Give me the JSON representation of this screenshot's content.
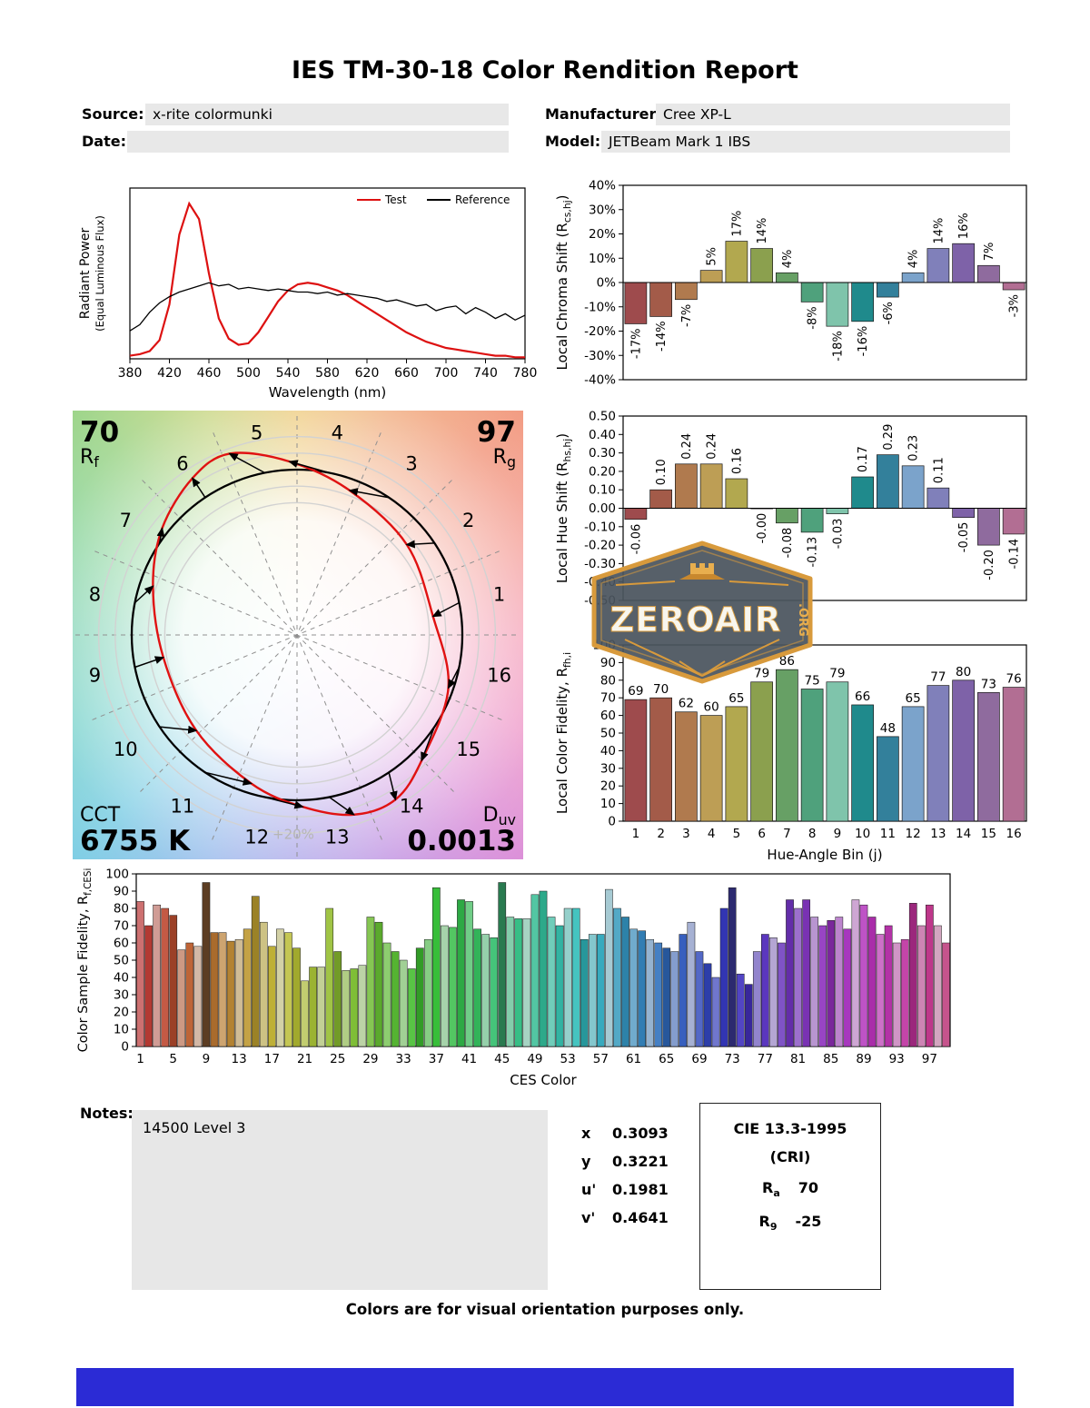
{
  "page": {
    "title": "IES TM-30-18 Color Rendition Report",
    "footer": "Colors are for visual orientation purposes only.",
    "accent_bar_color": "#2b2bd5"
  },
  "header": {
    "source": {
      "label": "Source:",
      "value": "x-rite colormunki"
    },
    "date": {
      "label": "Date:",
      "value": ""
    },
    "manufacturer": {
      "label": "Manufacturer:",
      "value": "Cree XP-L"
    },
    "model": {
      "label": "Model:",
      "value": "JETBeam Mark 1 IBS"
    }
  },
  "notes": {
    "label": "Notes:",
    "text": "14500 Level 3"
  },
  "chromaticity": {
    "rows": [
      {
        "label": "x",
        "value": "0.3093"
      },
      {
        "label": "y",
        "value": "0.3221"
      },
      {
        "label": "u'",
        "value": "0.1981"
      },
      {
        "label": "v'",
        "value": "0.4641"
      }
    ]
  },
  "cri_box": {
    "title": "CIE 13.3-1995",
    "subtitle": "(CRI)",
    "rows": [
      {
        "main": "R",
        "sub": "a",
        "value": "70"
      },
      {
        "main": "R",
        "sub": "9",
        "value": "-25"
      }
    ]
  },
  "watermark": {
    "name": "ZEROAIR",
    "tld": ".ORG"
  },
  "hue_bin_colors": [
    "#9e4b4d",
    "#a35b49",
    "#b07a4e",
    "#bd9e55",
    "#b2a84f",
    "#8ba04e",
    "#67a065",
    "#4fa17c",
    "#7fc4ab",
    "#1f8a8c",
    "#33809b",
    "#7ba3cb",
    "#8080ba",
    "#7e62a8",
    "#8f6b9e",
    "#b26e93"
  ],
  "chart_data": [
    {
      "id": "spd",
      "type": "line",
      "title": "Spectral Power Distribution",
      "xlabel": "Wavelength (nm)",
      "ylabel_line1": "Radiant Power",
      "ylabel_line2": "(Equal Luminous Flux)",
      "xlim": [
        380,
        780
      ],
      "ylim": [
        0,
        1.1
      ],
      "xticks": [
        380,
        420,
        460,
        500,
        540,
        580,
        620,
        660,
        700,
        740,
        780
      ],
      "x": [
        380,
        390,
        400,
        410,
        420,
        430,
        440,
        450,
        460,
        470,
        480,
        490,
        500,
        510,
        520,
        530,
        540,
        550,
        560,
        570,
        580,
        590,
        600,
        610,
        620,
        630,
        640,
        650,
        660,
        670,
        680,
        690,
        700,
        710,
        720,
        730,
        740,
        750,
        760,
        770,
        780
      ],
      "series": [
        {
          "name": "Test",
          "color": "#dd1111",
          "values": [
            0.02,
            0.03,
            0.05,
            0.12,
            0.35,
            0.8,
            1.0,
            0.9,
            0.55,
            0.26,
            0.13,
            0.09,
            0.1,
            0.17,
            0.27,
            0.37,
            0.44,
            0.48,
            0.49,
            0.48,
            0.46,
            0.44,
            0.41,
            0.37,
            0.33,
            0.29,
            0.25,
            0.21,
            0.17,
            0.14,
            0.11,
            0.09,
            0.07,
            0.06,
            0.05,
            0.04,
            0.03,
            0.02,
            0.02,
            0.01,
            0.01
          ]
        },
        {
          "name": "Reference",
          "color": "#000000",
          "values": [
            0.18,
            0.22,
            0.3,
            0.36,
            0.4,
            0.43,
            0.45,
            0.47,
            0.49,
            0.47,
            0.48,
            0.45,
            0.46,
            0.45,
            0.44,
            0.45,
            0.44,
            0.43,
            0.43,
            0.42,
            0.43,
            0.41,
            0.42,
            0.41,
            0.4,
            0.39,
            0.37,
            0.38,
            0.36,
            0.34,
            0.35,
            0.31,
            0.33,
            0.34,
            0.29,
            0.33,
            0.3,
            0.26,
            0.29,
            0.25,
            0.28
          ]
        }
      ]
    },
    {
      "id": "chroma_shift",
      "type": "bar",
      "ylabel": [
        {
          "t": "Local Chroma Shift (R"
        },
        {
          "t": "cs,hj",
          "sub": true
        },
        {
          "t": ")",
          "up": true
        }
      ],
      "ylim": [
        -40,
        40
      ],
      "yticks": [
        {
          "v": 40,
          "label": "40%"
        },
        {
          "v": 30,
          "label": "30%"
        },
        {
          "v": 20,
          "label": "20%"
        },
        {
          "v": 10,
          "label": "10%"
        },
        {
          "v": 0,
          "label": "0%"
        },
        {
          "v": -10,
          "label": "-10%"
        },
        {
          "v": -20,
          "label": "-20%"
        },
        {
          "v": -30,
          "label": "-30%"
        },
        {
          "v": -40,
          "label": "-40%"
        }
      ],
      "values": [
        -17,
        -14,
        -7,
        5,
        17,
        14,
        4,
        -8,
        -18,
        -16,
        -6,
        4,
        14,
        16,
        7,
        -3
      ],
      "labels": [
        "-17%",
        "-14%",
        "-7%",
        "5%",
        "17%",
        "14%",
        "4%",
        "-8%",
        "-18%",
        "-16%",
        "-6%",
        "4%",
        "14%",
        "16%",
        "7%",
        "-3%"
      ]
    },
    {
      "id": "hue_shift",
      "type": "bar",
      "ylabel": [
        {
          "t": "Local Hue Shift (R"
        },
        {
          "t": "hs,hj",
          "sub": true
        },
        {
          "t": ")",
          "up": true
        }
      ],
      "ylim": [
        -0.5,
        0.5
      ],
      "yticks": [
        {
          "v": 0.5,
          "label": "0.50"
        },
        {
          "v": 0.4,
          "label": "0.40"
        },
        {
          "v": 0.3,
          "label": "0.30"
        },
        {
          "v": 0.2,
          "label": "0.20"
        },
        {
          "v": 0.1,
          "label": "0.10"
        },
        {
          "v": 0,
          "label": "0.00"
        },
        {
          "v": -0.1,
          "label": "-0.10"
        },
        {
          "v": -0.2,
          "label": "-0.20"
        },
        {
          "v": -0.3,
          "label": "-0.30"
        },
        {
          "v": -0.4,
          "label": "-0.40"
        },
        {
          "v": -0.5,
          "label": "-0.50"
        }
      ],
      "values": [
        -0.06,
        0.1,
        0.24,
        0.24,
        0.16,
        -0.001,
        -0.08,
        -0.13,
        -0.03,
        0.17,
        0.29,
        0.23,
        0.11,
        -0.05,
        -0.2,
        -0.14
      ],
      "labels": [
        "-0.06",
        "0.10",
        "0.24",
        "0.24",
        "0.16",
        "-0.00",
        "-0.08",
        "-0.13",
        "-0.03",
        "0.17",
        "0.29",
        "0.23",
        "0.11",
        "-0.05",
        "-0.20",
        "-0.14"
      ]
    },
    {
      "id": "local_fidelity",
      "type": "bar",
      "ylabel": [
        {
          "t": "Local Color Fidelity, R"
        },
        {
          "t": "fh,i",
          "sub": true
        }
      ],
      "xlabel": "Hue-Angle Bin (j)",
      "ylim": [
        0,
        100
      ],
      "yticks": [
        {
          "v": 100,
          "label": "100"
        },
        {
          "v": 90,
          "label": "90"
        },
        {
          "v": 80,
          "label": "80"
        },
        {
          "v": 70,
          "label": "70"
        },
        {
          "v": 60,
          "label": "60"
        },
        {
          "v": 50,
          "label": "50"
        },
        {
          "v": 40,
          "label": "40"
        },
        {
          "v": 30,
          "label": "30"
        },
        {
          "v": 20,
          "label": "20"
        },
        {
          "v": 10,
          "label": "10"
        },
        {
          "v": 0,
          "label": "0"
        }
      ],
      "xticks": [
        "1",
        "2",
        "3",
        "4",
        "5",
        "6",
        "7",
        "8",
        "9",
        "10",
        "11",
        "12",
        "13",
        "14",
        "15",
        "16"
      ],
      "values": [
        69,
        70,
        62,
        60,
        65,
        79,
        86,
        75,
        79,
        66,
        48,
        65,
        77,
        80,
        73,
        76
      ],
      "labels": [
        "69",
        "70",
        "62",
        "60",
        "65",
        "79",
        "86",
        "75",
        "79",
        "66",
        "48",
        "65",
        "77",
        "80",
        "73",
        "76"
      ]
    },
    {
      "id": "ces",
      "type": "bar",
      "ylabel": [
        {
          "t": "Color Sample Fidelity, R"
        },
        {
          "t": "f,CESi",
          "sub": true
        }
      ],
      "xlabel": "CES Color",
      "ylim": [
        0,
        100
      ],
      "yticks": [
        {
          "v": 100,
          "label": "100"
        },
        {
          "v": 90,
          "label": "90"
        },
        {
          "v": 80,
          "label": "80"
        },
        {
          "v": 70,
          "label": "70"
        },
        {
          "v": 60,
          "label": "60"
        },
        {
          "v": 50,
          "label": "50"
        },
        {
          "v": 40,
          "label": "40"
        },
        {
          "v": 30,
          "label": "30"
        },
        {
          "v": 20,
          "label": "20"
        },
        {
          "v": 10,
          "label": "10"
        },
        {
          "v": 0,
          "label": "0"
        }
      ],
      "xtick_positions": [
        1,
        5,
        9,
        13,
        17,
        21,
        25,
        29,
        33,
        37,
        41,
        45,
        49,
        53,
        57,
        61,
        65,
        69,
        73,
        77,
        81,
        85,
        89,
        93,
        97
      ],
      "values": [
        84,
        70,
        82,
        80,
        76,
        56,
        60,
        58,
        95,
        66,
        66,
        61,
        62,
        68,
        87,
        72,
        58,
        68,
        66,
        57,
        38,
        46,
        46,
        80,
        55,
        44,
        45,
        47,
        75,
        72,
        60,
        55,
        50,
        45,
        57,
        62,
        92,
        70,
        69,
        85,
        84,
        68,
        65,
        63,
        95,
        75,
        74,
        74,
        88,
        90,
        75,
        70,
        80,
        80,
        62,
        65,
        65,
        91,
        80,
        75,
        68,
        67,
        62,
        60,
        57,
        55,
        65,
        72,
        55,
        48,
        40,
        80,
        92,
        42,
        36,
        55,
        65,
        63,
        60,
        85,
        80,
        85,
        75,
        70,
        73,
        75,
        68,
        85,
        82,
        75,
        65,
        70,
        60,
        62,
        83,
        70,
        82,
        70,
        60
      ],
      "colors": [
        "hsl(0,48%,62%)",
        "hsl(3,56%,45%)",
        "hsl(7,38%,70%)",
        "hsl(10,52%,52%)",
        "hsl(13,60%,38%)",
        "hsl(17,42%,66%)",
        "hsl(20,55%,48%)",
        "hsl(24,34%,74%)",
        "hsl(27,45%,25%)",
        "hsl(30,58%,42%)",
        "hsl(34,48%,62%)",
        "hsl(37,56%,45%)",
        "hsl(40,38%,70%)",
        "hsl(44,52%,52%)",
        "hsl(47,60%,38%)",
        "hsl(51,42%,66%)",
        "hsl(54,55%,48%)",
        "hsl(57,34%,74%)",
        "hsl(61,50%,55%)",
        "hsl(64,58%,42%)",
        "hsl(67,48%,62%)",
        "hsl(71,56%,45%)",
        "hsl(74,38%,70%)",
        "hsl(77,52%,52%)",
        "hsl(81,60%,38%)",
        "hsl(84,42%,66%)",
        "hsl(88,55%,48%)",
        "hsl(91,34%,74%)",
        "hsl(94,50%,55%)",
        "hsl(98,58%,42%)",
        "hsl(101,48%,62%)",
        "hsl(104,56%,45%)",
        "hsl(108,38%,70%)",
        "hsl(111,52%,52%)",
        "hsl(114,60%,38%)",
        "hsl(118,42%,66%)",
        "hsl(121,55%,48%)",
        "hsl(125,34%,74%)",
        "hsl(128,50%,55%)",
        "hsl(131,58%,42%)",
        "hsl(135,48%,62%)",
        "hsl(138,56%,45%)",
        "hsl(141,38%,70%)",
        "hsl(145,52%,52%)",
        "hsl(148,50%,32%)",
        "hsl(152,42%,66%)",
        "hsl(155,55%,48%)",
        "hsl(158,34%,74%)",
        "hsl(162,50%,55%)",
        "hsl(165,58%,42%)",
        "hsl(168,48%,62%)",
        "hsl(172,56%,45%)",
        "hsl(175,38%,70%)",
        "hsl(178,52%,52%)",
        "hsl(182,60%,38%)",
        "hsl(185,42%,66%)",
        "hsl(189,55%,48%)",
        "hsl(192,34%,74%)",
        "hsl(195,50%,55%)",
        "hsl(199,58%,42%)",
        "hsl(202,48%,62%)",
        "hsl(205,56%,45%)",
        "hsl(209,38%,70%)",
        "hsl(212,52%,52%)",
        "hsl(215,60%,38%)",
        "hsl(219,42%,66%)",
        "hsl(222,55%,48%)",
        "hsl(226,34%,74%)",
        "hsl(229,50%,55%)",
        "hsl(232,58%,42%)",
        "hsl(236,48%,62%)",
        "hsl(239,56%,45%)",
        "hsl(242,45%,30%)",
        "hsl(246,52%,52%)",
        "hsl(249,60%,38%)",
        "hsl(252,42%,66%)",
        "hsl(256,55%,48%)",
        "hsl(259,34%,74%)",
        "hsl(263,50%,55%)",
        "hsl(266,58%,42%)",
        "hsl(269,48%,62%)",
        "hsl(273,56%,45%)",
        "hsl(276,38%,70%)",
        "hsl(279,52%,52%)",
        "hsl(283,60%,38%)",
        "hsl(286,42%,66%)",
        "hsl(290,55%,48%)",
        "hsl(293,34%,74%)",
        "hsl(296,50%,55%)",
        "hsl(300,58%,42%)",
        "hsl(303,48%,62%)",
        "hsl(306,56%,45%)",
        "hsl(310,38%,70%)",
        "hsl(313,52%,52%)",
        "hsl(316,60%,38%)",
        "hsl(320,42%,66%)",
        "hsl(323,55%,48%)",
        "hsl(326,34%,74%)",
        "hsl(330,50%,55%)"
      ]
    },
    {
      "id": "vector",
      "type": "color-vector-graphic",
      "rf": {
        "value": "70",
        "main": "R",
        "sub": "f"
      },
      "rg": {
        "value": "97",
        "main": "R",
        "sub": "g"
      },
      "cct": {
        "label": "CCT",
        "value": "6755 K"
      },
      "duv": {
        "main": "D",
        "sub": "uv",
        "value": "0.0013"
      },
      "ring_label": "+20%",
      "bin_labels": [
        "1",
        "2",
        "3",
        "4",
        "5",
        "6",
        "7",
        "8",
        "9",
        "10",
        "11",
        "12",
        "13",
        "14",
        "15",
        "16"
      ]
    }
  ]
}
